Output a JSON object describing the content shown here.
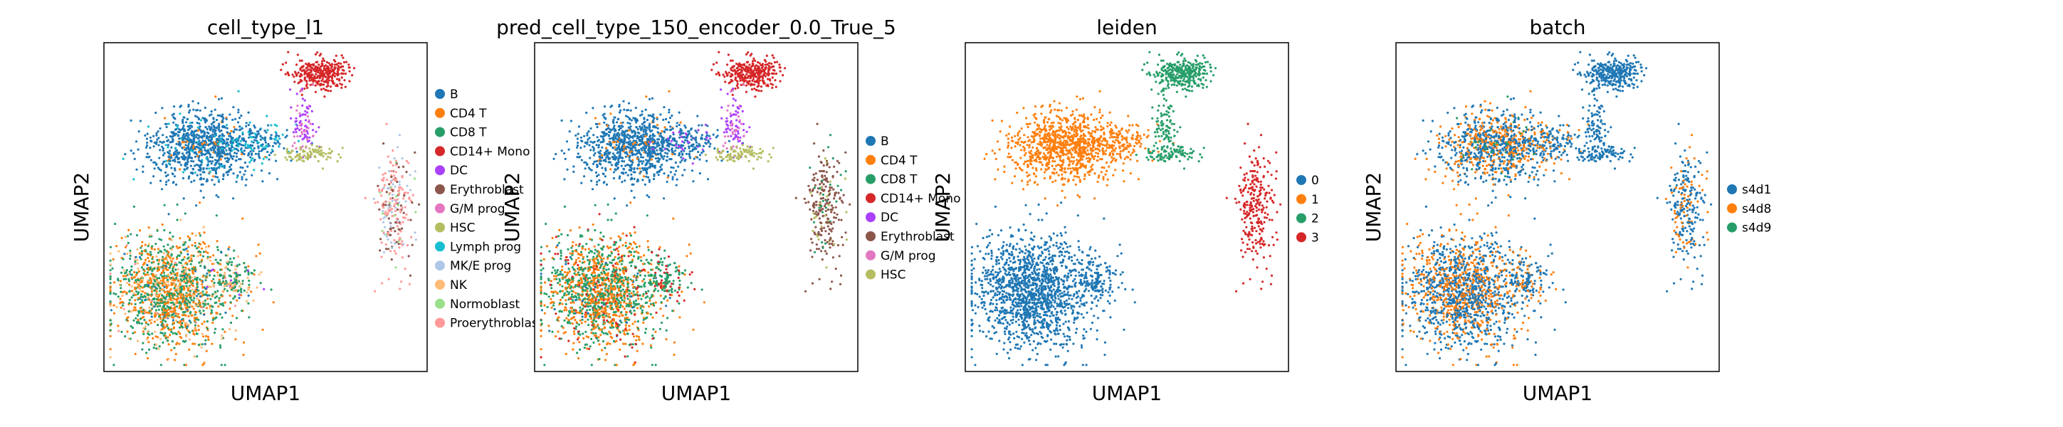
{
  "chart_data": [
    {
      "type": "scatter",
      "title": "cell_type_l1",
      "xlabel": "UMAP1",
      "ylabel": "UMAP2",
      "legend_placement": "right, outside axes",
      "colors": [
        "#1f77b4",
        "#ff7f0e",
        "#279e68",
        "#d62728",
        "#aa40fc",
        "#8c564b",
        "#e377c2",
        "#b5bd61",
        "#17becf",
        "#aec7e8",
        "#ffbb78",
        "#98df8a",
        "#ff9896"
      ],
      "legend": [
        "B",
        "CD4 T",
        "CD8 T",
        "CD14+ Mono",
        "DC",
        "Erythroblast",
        "G/M prog",
        "HSC",
        "Lymph prog",
        "MK/E prog",
        "NK",
        "Normoblast",
        "Proerythroblast"
      ]
    },
    {
      "type": "scatter",
      "title": "pred_cell_type_150_encoder_0.0_True_5",
      "xlabel": "UMAP1",
      "ylabel": "UMAP2",
      "legend_placement": "right, outside axes",
      "colors": [
        "#1f77b4",
        "#ff7f0e",
        "#279e68",
        "#d62728",
        "#aa40fc",
        "#8c564b",
        "#e377c2",
        "#b5bd61"
      ],
      "legend": [
        "B",
        "CD4 T",
        "CD8 T",
        "CD14+ Mono",
        "DC",
        "Erythroblast",
        "G/M prog",
        "HSC"
      ]
    },
    {
      "type": "scatter",
      "title": "leiden",
      "xlabel": "UMAP1",
      "ylabel": "UMAP2",
      "legend_placement": "right, outside axes",
      "colors": [
        "#1f77b4",
        "#ff7f0e",
        "#279e68",
        "#d62728"
      ],
      "legend": [
        "0",
        "1",
        "2",
        "3"
      ]
    },
    {
      "type": "scatter",
      "title": "batch",
      "xlabel": "UMAP1",
      "ylabel": "UMAP2",
      "legend_placement": "right, outside axes",
      "colors": [
        "#1f77b4",
        "#ff7f0e",
        "#279e68"
      ],
      "legend": [
        "s4d1",
        "s4d8",
        "s4d9"
      ]
    }
  ]
}
